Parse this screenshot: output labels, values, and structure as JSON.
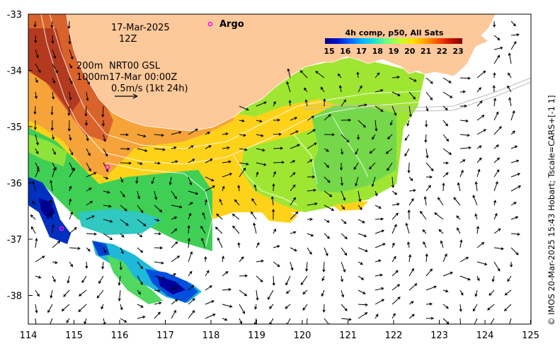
{
  "map": {
    "date": "17-Mar-2025",
    "hour": "12Z",
    "depth_shallow": "200m",
    "depth_deep": "1000m",
    "current_model": "NRT00 GSL",
    "current_time": "17-Mar 00:00Z",
    "vector_scale": "0.5m/s (1kt 24h)",
    "argo_label": "Argo",
    "colorbar_title": "4h comp, p50, All Sats",
    "colorbar_ticks": [
      "15",
      "16",
      "17",
      "18",
      "19",
      "20",
      "21",
      "22",
      "23"
    ],
    "colorbar_colors": [
      "#00007f",
      "#0010d0",
      "#0060ff",
      "#00b4ff",
      "#1ee0d0",
      "#70ff80",
      "#c0ff30",
      "#ffe000",
      "#ffa000",
      "#ff5000",
      "#d01000",
      "#800000"
    ],
    "x_ticks": [
      "114",
      "115",
      "116",
      "117",
      "118",
      "119",
      "120",
      "121",
      "122",
      "123",
      "124",
      "125"
    ],
    "y_ticks": [
      "-33",
      "-34",
      "-35",
      "-36",
      "-37",
      "-38"
    ],
    "credit": "© IMOS 20-Mar-2025 15:43 Hobart; Tscale=CARS+[-1 1]",
    "colors": {
      "land": "#fdc89a",
      "argo": "#ff00ff",
      "contour": "#ffffff"
    }
  }
}
